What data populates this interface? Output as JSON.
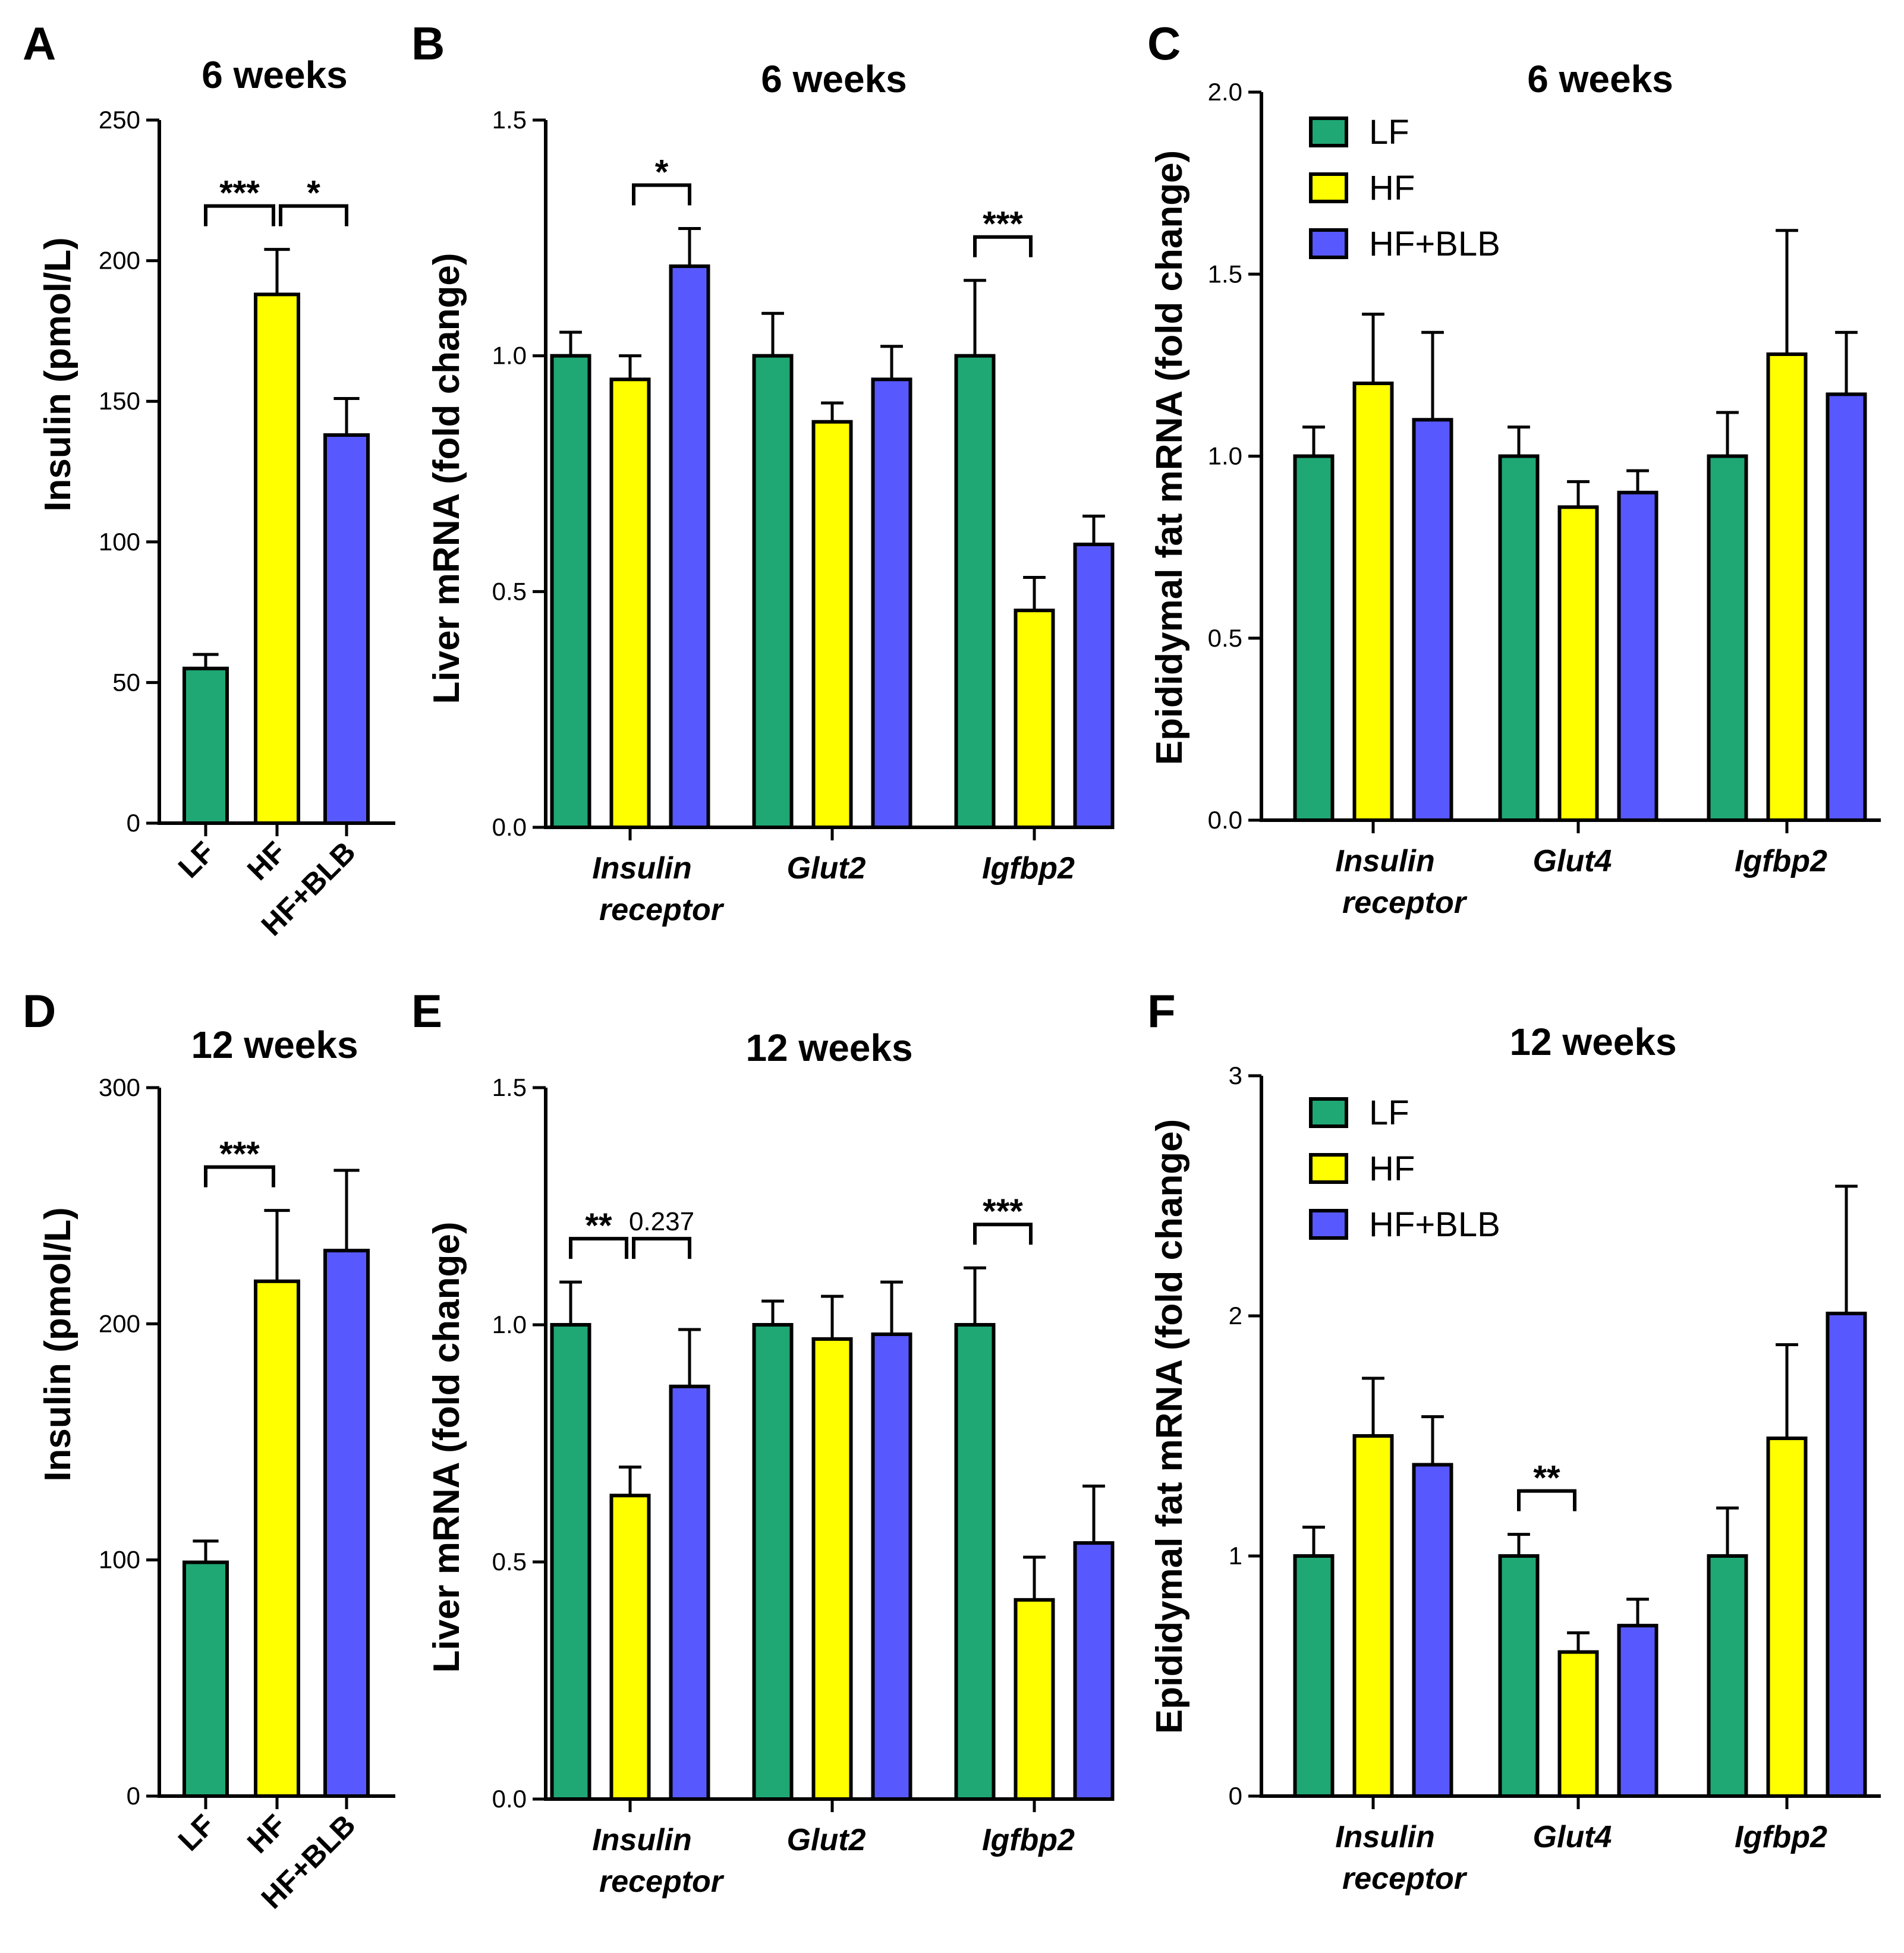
{
  "colors": {
    "LF": "#1fa774",
    "HF": "#ffff00",
    "HF+BLB": "#5858ff"
  },
  "legend": [
    "LF",
    "HF",
    "HF+BLB"
  ],
  "chart_data": [
    {
      "panel": "A",
      "type": "bar",
      "title": "6 weeks",
      "ylabel": "Insulin (pmol/L)",
      "ylim": [
        0,
        250
      ],
      "yticks": [
        0,
        50,
        100,
        150,
        200,
        250
      ],
      "categories": [
        "LF",
        "HF",
        "HF+BLB"
      ],
      "values": [
        55,
        188,
        138
      ],
      "errors": [
        5,
        16,
        13
      ],
      "significance": [
        {
          "from": 0,
          "to": 1,
          "label": "***"
        },
        {
          "from": 1,
          "to": 2,
          "label": "*"
        }
      ]
    },
    {
      "panel": "B",
      "type": "bar",
      "title": "6 weeks",
      "ylabel": "Liver mRNA (fold change)",
      "ylim": [
        0,
        1.5
      ],
      "yticks": [
        "0.0",
        "0.5",
        "1.0",
        "1.5"
      ],
      "groups": [
        [
          "Insulin",
          "receptor"
        ],
        [
          "Glut2"
        ],
        [
          "Igfbp2"
        ]
      ],
      "series": [
        {
          "name": "LF",
          "values": [
            1.0,
            1.0,
            1.0
          ],
          "errors": [
            0.05,
            0.09,
            0.16
          ]
        },
        {
          "name": "HF",
          "values": [
            0.95,
            0.86,
            0.46
          ],
          "errors": [
            0.05,
            0.04,
            0.07
          ]
        },
        {
          "name": "HF+BLB",
          "values": [
            1.19,
            0.95,
            0.6
          ],
          "errors": [
            0.08,
            0.07,
            0.06
          ]
        }
      ],
      "significance": [
        {
          "group": 0,
          "from": 1,
          "to": 2,
          "label": "*"
        },
        {
          "group": 2,
          "from": 0,
          "to": 1,
          "label": "***"
        }
      ]
    },
    {
      "panel": "C",
      "type": "bar",
      "title": "6 weeks",
      "ylabel": "Epididymal fat mRNA (fold change)",
      "ylim": [
        0,
        2.0
      ],
      "yticks": [
        "0.0",
        "0.5",
        "1.0",
        "1.5",
        "2.0"
      ],
      "groups": [
        [
          "Insulin",
          "receptor"
        ],
        [
          "Glut4"
        ],
        [
          "Igfbp2"
        ]
      ],
      "series": [
        {
          "name": "LF",
          "values": [
            1.0,
            1.0,
            1.0
          ],
          "errors": [
            0.08,
            0.08,
            0.12
          ]
        },
        {
          "name": "HF",
          "values": [
            1.2,
            0.86,
            1.28
          ],
          "errors": [
            0.19,
            0.07,
            0.34
          ]
        },
        {
          "name": "HF+BLB",
          "values": [
            1.1,
            0.9,
            1.17
          ],
          "errors": [
            0.24,
            0.06,
            0.17
          ]
        }
      ],
      "legend_placement": "top-left",
      "significance": []
    },
    {
      "panel": "D",
      "type": "bar",
      "title": "12 weeks",
      "ylabel": "Insulin (pmol/L)",
      "ylim": [
        0,
        300
      ],
      "yticks": [
        0,
        100,
        200,
        300
      ],
      "categories": [
        "LF",
        "HF",
        "HF+BLB"
      ],
      "values": [
        99,
        218,
        231
      ],
      "errors": [
        9,
        30,
        34
      ],
      "significance": [
        {
          "from": 0,
          "to": 1,
          "label": "***"
        }
      ]
    },
    {
      "panel": "E",
      "type": "bar",
      "title": "12 weeks",
      "ylabel": "Liver mRNA (fold change)",
      "ylim": [
        0,
        1.5
      ],
      "yticks": [
        "0.0",
        "0.5",
        "1.0",
        "1.5"
      ],
      "groups": [
        [
          "Insulin",
          "receptor"
        ],
        [
          "Glut2"
        ],
        [
          "Igfbp2"
        ]
      ],
      "series": [
        {
          "name": "LF",
          "values": [
            1.0,
            1.0,
            1.0
          ],
          "errors": [
            0.09,
            0.05,
            0.12
          ]
        },
        {
          "name": "HF",
          "values": [
            0.64,
            0.97,
            0.42
          ],
          "errors": [
            0.06,
            0.09,
            0.09
          ]
        },
        {
          "name": "HF+BLB",
          "values": [
            0.87,
            0.98,
            0.54
          ],
          "errors": [
            0.12,
            0.11,
            0.12
          ]
        }
      ],
      "significance": [
        {
          "group": 0,
          "from": 0,
          "to": 1,
          "label": "**"
        },
        {
          "group": 0,
          "from": 1,
          "to": 2,
          "label": "0.237"
        },
        {
          "group": 2,
          "from": 0,
          "to": 1,
          "label": "***"
        }
      ]
    },
    {
      "panel": "F",
      "type": "bar",
      "title": "12 weeks",
      "ylabel": "Epididymal fat mRNA (fold change)",
      "ylim": [
        0,
        3
      ],
      "yticks": [
        0,
        1,
        2,
        3
      ],
      "groups": [
        [
          "Insulin",
          "receptor"
        ],
        [
          "Glut4"
        ],
        [
          "Igfbp2"
        ]
      ],
      "series": [
        {
          "name": "LF",
          "values": [
            1.0,
            1.0,
            1.0
          ],
          "errors": [
            0.12,
            0.09,
            0.2
          ]
        },
        {
          "name": "HF",
          "values": [
            1.5,
            0.6,
            1.49
          ],
          "errors": [
            0.24,
            0.08,
            0.39
          ]
        },
        {
          "name": "HF+BLB",
          "values": [
            1.38,
            0.71,
            2.01
          ],
          "errors": [
            0.2,
            0.11,
            0.53
          ]
        }
      ],
      "legend_placement": "top-left",
      "significance": [
        {
          "group": 1,
          "from": 0,
          "to": 1,
          "label": "**"
        }
      ]
    }
  ]
}
